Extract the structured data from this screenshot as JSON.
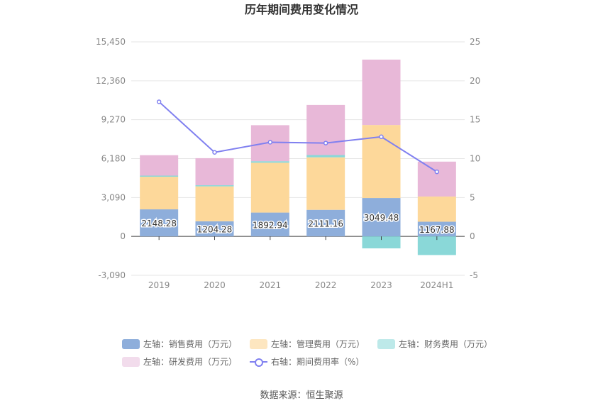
{
  "chart_data": {
    "type": "bar",
    "title": "历年期间费用变化情况",
    "categories": [
      "2019",
      "2020",
      "2021",
      "2022",
      "2023",
      "2024H1"
    ],
    "left_axis": {
      "ticks": [
        -3090,
        0,
        3090,
        6180,
        9270,
        12360,
        15450
      ],
      "tick_labels": [
        "-3,090",
        "0",
        "3,090",
        "6,180",
        "9,270",
        "12,360",
        "15,450"
      ],
      "ylim": [
        -3090,
        15450
      ]
    },
    "right_axis": {
      "ticks": [
        -5,
        0,
        5,
        10,
        15,
        20,
        25
      ],
      "tick_labels": [
        "-5",
        "0",
        "5",
        "10",
        "15",
        "20",
        "25"
      ],
      "ylim": [
        -5,
        25
      ]
    },
    "series": [
      {
        "name": "左轴：销售费用（万元）",
        "color": "#8eaedb",
        "values": [
          2148.28,
          1204.28,
          1892.94,
          2111.16,
          3049.48,
          1167.88
        ],
        "labels": [
          "2148.28",
          "1204.28",
          "1892.94",
          "2111.16",
          "3049.48",
          "1167.88"
        ]
      },
      {
        "name": "左轴：管理费用（万元）",
        "color": "#fdd89a",
        "values": [
          2590,
          2770,
          3960,
          4170,
          5800,
          2000
        ]
      },
      {
        "name": "左轴：财务费用（万元）",
        "color": "#8ad8d8",
        "values": [
          90,
          90,
          120,
          180,
          -950,
          -1480
        ]
      },
      {
        "name": "左轴：研发费用（万元）",
        "color": "#e8b8d8",
        "values": [
          1620,
          2150,
          2860,
          3980,
          5190,
          2770
        ]
      },
      {
        "name": "右轴：期间费用率（%）",
        "color": "#8080f0",
        "type": "line",
        "values": [
          17.3,
          10.8,
          12.1,
          12.0,
          12.8,
          8.3
        ]
      }
    ]
  },
  "legend": [
    {
      "label": "左轴：销售费用（万元）",
      "color": "#8eaedb",
      "kind": "box"
    },
    {
      "label": "左轴：管理费用（万元）",
      "color": "#fde6c0",
      "kind": "box"
    },
    {
      "label": "左轴：财务费用（万元）",
      "color": "#bde9e9",
      "kind": "box"
    },
    {
      "label": "左轴：研发费用（万元）",
      "color": "#f2dcec",
      "kind": "box"
    },
    {
      "label": "右轴：期间费用率（%）",
      "color": "#8080f0",
      "kind": "line"
    }
  ],
  "source": "数据来源：恒生聚源"
}
